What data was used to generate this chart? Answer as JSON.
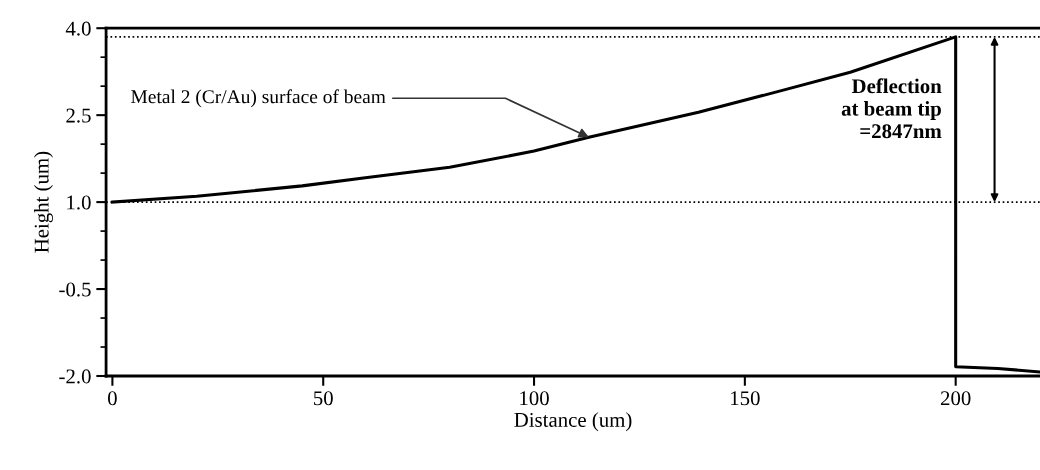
{
  "chart_data": {
    "type": "line",
    "xlabel": "Distance (um)",
    "ylabel": "Height (um)",
    "x": [
      0,
      20,
      45,
      60,
      80,
      100,
      113,
      139,
      158,
      175,
      200,
      200,
      210,
      220
    ],
    "series": [
      {
        "color": "#000000",
        "values": [
          1.0,
          1.1,
          1.28,
          1.42,
          1.6,
          1.88,
          2.12,
          2.55,
          2.91,
          3.24,
          3.85,
          -1.84,
          -1.87,
          -1.93
        ]
      }
    ],
    "xlim": [
      -1.5,
      220
    ],
    "xticks": [
      0,
      50,
      100,
      150,
      200
    ],
    "ylim": [
      -2.0,
      4.0
    ],
    "yticks": [
      {
        "value": -2.0,
        "label": "-2.0"
      },
      {
        "value": -0.5,
        "label": "-0.5"
      },
      {
        "value": 1.0,
        "label": "1.0"
      },
      {
        "value": 2.5,
        "label": "2.5"
      },
      {
        "value": 4.0,
        "label": "4.0"
      }
    ],
    "ref_lines": [
      {
        "axis": "y",
        "value": 1.0,
        "line_style": "dotted"
      },
      {
        "axis": "y",
        "value": 3.85,
        "line_style": "dotted"
      }
    ],
    "annotations": [
      {
        "text": "Metal 2 (Cr/Au) surface of beam",
        "x": 113,
        "y": 2.12
      },
      {
        "text": "Deflection\nat beam tip\n=2847nm",
        "x": 200,
        "y": 3.85
      }
    ],
    "grid": false,
    "legend": false,
    "marker": "none",
    "line_style": "solid"
  }
}
